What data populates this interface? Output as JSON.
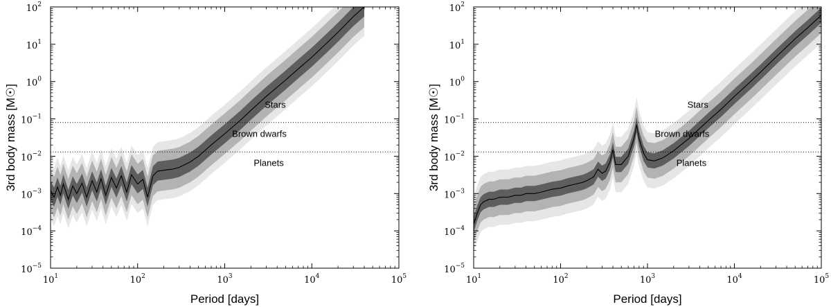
{
  "chart_data": [
    {
      "type": "line",
      "xlabel": "Period [days]",
      "ylabel": "3rd body mass [M☉]",
      "x_scale": "log",
      "y_scale": "log",
      "xlim": [
        10,
        100000
      ],
      "ylim": [
        1e-05,
        100
      ],
      "grid": false,
      "x_ticks": [
        {
          "value": 10,
          "label": "10",
          "exp": "1"
        },
        {
          "value": 100,
          "label": "10",
          "exp": "2"
        },
        {
          "value": 1000,
          "label": "10",
          "exp": "3"
        },
        {
          "value": 10000,
          "label": "10",
          "exp": "4"
        },
        {
          "value": 100000,
          "label": "10",
          "exp": "5"
        }
      ],
      "y_ticks": [
        {
          "value": 1e-05,
          "label": "10",
          "exp": "−5"
        },
        {
          "value": 0.0001,
          "label": "10",
          "exp": "−4"
        },
        {
          "value": 0.001,
          "label": "10",
          "exp": "−3"
        },
        {
          "value": 0.01,
          "label": "10",
          "exp": "−2"
        },
        {
          "value": 0.1,
          "label": "10",
          "exp": "−1"
        },
        {
          "value": 1,
          "label": "10",
          "exp": "0"
        },
        {
          "value": 10,
          "label": "10",
          "exp": "1"
        },
        {
          "value": 100,
          "label": "10",
          "exp": "2"
        }
      ],
      "reference_lines": [
        {
          "y": 0.08,
          "style": "dotted"
        },
        {
          "y": 0.013,
          "style": "dotted"
        }
      ],
      "region_labels": [
        {
          "text": "Stars",
          "x": 3800,
          "y": 0.2
        },
        {
          "text": "Brown dwarfs",
          "x": 2500,
          "y": 0.033
        },
        {
          "text": "Planets",
          "x": 3200,
          "y": 0.0055
        }
      ],
      "series": [
        {
          "x": [
            10,
            11,
            12,
            13,
            14,
            16,
            18,
            20,
            23,
            26,
            30,
            34,
            38,
            43,
            50,
            57,
            65,
            75,
            85,
            100,
            115,
            130,
            150,
            170,
            200,
            250,
            300,
            400,
            500,
            700,
            1000,
            1500,
            2000,
            3000,
            5000,
            7000,
            10000,
            15000,
            20000,
            30000,
            40000
          ],
          "y": [
            0.0012,
            0.0008,
            0.0015,
            0.0009,
            0.0018,
            0.0007,
            0.0016,
            0.001,
            0.0019,
            0.0008,
            0.0022,
            0.0011,
            0.0025,
            0.0009,
            0.0027,
            0.0014,
            0.003,
            0.0011,
            0.0032,
            0.0018,
            0.0024,
            0.0008,
            0.003,
            0.004,
            0.0042,
            0.0045,
            0.005,
            0.007,
            0.01,
            0.02,
            0.04,
            0.09,
            0.17,
            0.4,
            1.1,
            2.2,
            4.5,
            11,
            21,
            55,
            100
          ],
          "band_factors": [
            1.8,
            3.5,
            6
          ]
        },
        {
          "x": [
            10,
            11,
            12,
            13,
            15,
            17,
            20,
            25,
            30,
            35,
            40,
            50,
            60,
            70,
            80,
            100,
            120,
            150,
            180,
            200,
            240,
            270,
            300,
            330,
            370,
            400,
            430,
            500,
            600,
            700,
            750,
            800,
            900,
            1000,
            1200,
            1500,
            2000,
            3000,
            5000,
            7000,
            10000,
            15000,
            20000,
            30000,
            50000,
            70000,
            100000
          ],
          "y": [
            0.00015,
            0.0003,
            0.0005,
            0.0006,
            0.0007,
            0.0007,
            0.0008,
            0.0008,
            0.0009,
            0.0009,
            0.001,
            0.001,
            0.0011,
            0.0012,
            0.0013,
            0.0014,
            0.0016,
            0.0018,
            0.002,
            0.0022,
            0.0028,
            0.0045,
            0.0035,
            0.004,
            0.007,
            0.015,
            0.006,
            0.006,
            0.01,
            0.03,
            0.07,
            0.03,
            0.012,
            0.008,
            0.0075,
            0.009,
            0.014,
            0.03,
            0.09,
            0.18,
            0.4,
            0.95,
            1.8,
            4.5,
            14,
            28,
            60
          ],
          "band_factors": [
            1.6,
            3,
            5.5
          ]
        }
      ]
    }
  ]
}
